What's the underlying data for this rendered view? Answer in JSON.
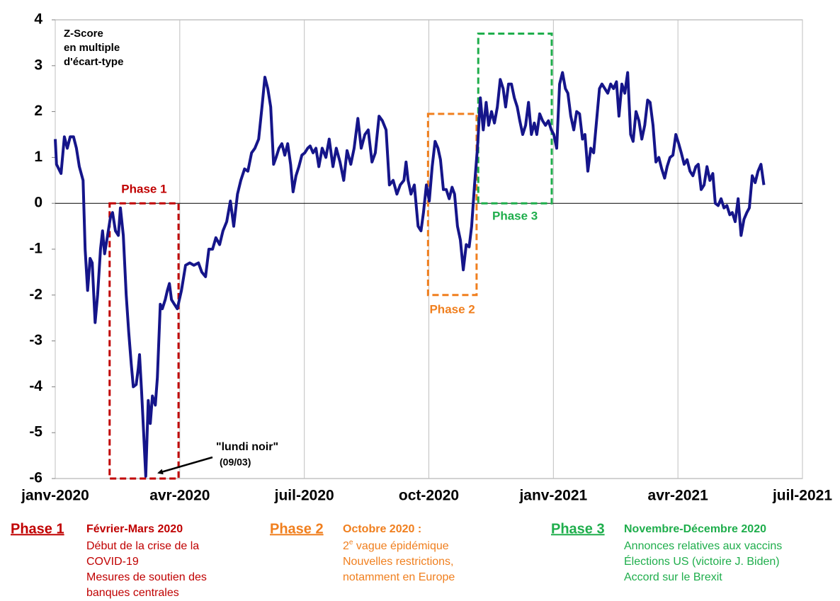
{
  "chart_data": {
    "type": "line",
    "y_axis_label": [
      "Z-Score",
      "en multiple",
      "d'écart-type"
    ],
    "color": "#15158a",
    "x": [
      0,
      0.03,
      0.14,
      0.22,
      0.29,
      0.36,
      0.44,
      0.51,
      0.58,
      0.67,
      0.72,
      0.78,
      0.84,
      0.89,
      0.96,
      1.02,
      1.09,
      1.14,
      1.19,
      1.26,
      1.33,
      1.38,
      1.45,
      1.52,
      1.57,
      1.64,
      1.71,
      1.77,
      1.83,
      1.88,
      1.95,
      2.0,
      2.03,
      2.08,
      2.13,
      2.18,
      2.24,
      2.29,
      2.34,
      2.41,
      2.46,
      2.53,
      2.58,
      2.65,
      2.7,
      2.75,
      2.8,
      2.87,
      2.94,
      3.04,
      3.14,
      3.24,
      3.34,
      3.45,
      3.53,
      3.62,
      3.7,
      3.79,
      3.87,
      3.96,
      4.04,
      4.13,
      4.22,
      4.3,
      4.39,
      4.47,
      4.56,
      4.64,
      4.73,
      4.81,
      4.9,
      4.98,
      5.05,
      5.12,
      5.19,
      5.26,
      5.32,
      5.39,
      5.46,
      5.53,
      5.6,
      5.67,
      5.73,
      5.8,
      5.87,
      5.94,
      6.01,
      6.08,
      6.14,
      6.21,
      6.28,
      6.35,
      6.43,
      6.52,
      6.6,
      6.69,
      6.77,
      6.86,
      6.95,
      7.03,
      7.12,
      7.2,
      7.29,
      7.37,
      7.46,
      7.54,
      7.63,
      7.71,
      7.8,
      7.88,
      7.97,
      8.05,
      8.14,
      8.23,
      8.31,
      8.4,
      8.45,
      8.5,
      8.57,
      8.65,
      8.74,
      8.81,
      8.87,
      8.94,
      9.01,
      9.08,
      9.15,
      9.22,
      9.28,
      9.35,
      9.42,
      9.49,
      9.56,
      9.62,
      9.69,
      9.76,
      9.83,
      9.9,
      9.97,
      10.03,
      10.1,
      10.17,
      10.24,
      10.31,
      10.38,
      10.44,
      10.51,
      10.58,
      10.65,
      10.72,
      10.79,
      10.85,
      10.92,
      10.99,
      11.06,
      11.13,
      11.19,
      11.26,
      11.33,
      11.4,
      11.47,
      11.54,
      11.6,
      11.67,
      11.74,
      11.81,
      11.88,
      11.95,
      12.01,
      12.08,
      12.15,
      12.22,
      12.29,
      12.35,
      12.42,
      12.49,
      12.56,
      12.63,
      12.7,
      12.76,
      12.83,
      12.9,
      12.97,
      13.04,
      13.11,
      13.17,
      13.24,
      13.31,
      13.38,
      13.45,
      13.52,
      13.58,
      13.65,
      13.72,
      13.79,
      13.86,
      13.92,
      13.99,
      14.06,
      14.13,
      14.2,
      14.27,
      14.33,
      14.4,
      14.47,
      14.54,
      14.61,
      14.68,
      14.74,
      14.81,
      14.88,
      14.95,
      15.02,
      15.08,
      15.15,
      15.22,
      15.29,
      15.36,
      15.43,
      15.49,
      15.56,
      15.63,
      15.7,
      15.77,
      15.84,
      15.9,
      15.97,
      16.04,
      16.11,
      16.18,
      16.25,
      16.31,
      16.38,
      16.45,
      16.52,
      16.59,
      16.66,
      16.72,
      16.79,
      16.86,
      16.93,
      17.0,
      17.07
    ],
    "values": [
      1.4,
      0.85,
      0.65,
      1.45,
      1.2,
      1.45,
      1.45,
      1.2,
      0.8,
      0.5,
      -1.0,
      -1.9,
      -1.2,
      -1.3,
      -2.6,
      -2.0,
      -1.0,
      -0.6,
      -1.1,
      -0.7,
      -0.3,
      -0.2,
      -0.6,
      -0.7,
      -0.1,
      -0.7,
      -2.0,
      -2.8,
      -3.5,
      -4.0,
      -3.95,
      -3.6,
      -3.3,
      -4.1,
      -5.0,
      -5.95,
      -4.3,
      -4.8,
      -4.2,
      -4.4,
      -3.8,
      -2.2,
      -2.3,
      -2.1,
      -1.9,
      -1.75,
      -2.1,
      -2.2,
      -2.3,
      -1.9,
      -1.35,
      -1.3,
      -1.35,
      -1.3,
      -1.5,
      -1.6,
      -1.0,
      -1.0,
      -0.75,
      -0.9,
      -0.6,
      -0.4,
      0.05,
      -0.5,
      0.2,
      0.5,
      0.75,
      0.7,
      1.1,
      1.2,
      1.4,
      2.1,
      2.75,
      2.5,
      2.1,
      0.85,
      1.0,
      1.2,
      1.3,
      1.05,
      1.3,
      0.85,
      0.25,
      0.6,
      0.8,
      1.05,
      1.1,
      1.2,
      1.25,
      1.1,
      1.2,
      0.8,
      1.2,
      1.0,
      1.4,
      0.8,
      1.2,
      0.9,
      0.5,
      1.15,
      0.85,
      1.2,
      1.85,
      1.2,
      1.5,
      1.6,
      0.9,
      1.1,
      1.9,
      1.8,
      1.6,
      0.4,
      0.5,
      0.2,
      0.4,
      0.5,
      0.9,
      0.5,
      0.2,
      0.4,
      -0.5,
      -0.6,
      -0.2,
      0.4,
      0.05,
      0.8,
      1.35,
      1.2,
      0.95,
      0.3,
      0.3,
      0.1,
      0.35,
      0.2,
      -0.5,
      -0.8,
      -1.45,
      -0.9,
      -0.95,
      -0.5,
      0.4,
      1.2,
      2.3,
      1.6,
      2.2,
      1.7,
      2.0,
      1.75,
      2.1,
      2.7,
      2.5,
      2.1,
      2.6,
      2.6,
      2.3,
      2.1,
      1.8,
      1.5,
      1.7,
      2.2,
      1.5,
      1.75,
      1.5,
      1.95,
      1.8,
      1.7,
      1.8,
      1.6,
      1.5,
      1.2,
      2.6,
      2.85,
      2.5,
      2.4,
      1.9,
      1.6,
      2.0,
      1.95,
      1.4,
      1.5,
      0.7,
      1.2,
      1.1,
      1.8,
      2.5,
      2.6,
      2.5,
      2.4,
      2.6,
      2.5,
      2.65,
      1.9,
      2.6,
      2.4,
      2.85,
      1.5,
      1.35,
      2.0,
      1.8,
      1.4,
      1.7,
      2.25,
      2.2,
      1.7,
      0.9,
      1.0,
      0.75,
      0.55,
      0.8,
      1.0,
      1.05,
      1.5,
      1.3,
      1.1,
      0.85,
      0.95,
      0.7,
      0.6,
      0.8,
      0.85,
      0.3,
      0.4,
      0.8,
      0.5,
      0.65,
      0.0,
      -0.05,
      0.1,
      -0.1,
      -0.05,
      -0.25,
      -0.2,
      -0.4,
      0.1,
      -0.7,
      -0.35,
      -0.2,
      -0.1,
      0.6,
      0.45,
      0.7,
      0.85,
      0.4
    ],
    "xlim": [
      0,
      18
    ],
    "xticks": [
      {
        "value": 0,
        "label": "janv-2020"
      },
      {
        "value": 3,
        "label": "avr-2020"
      },
      {
        "value": 6,
        "label": "juil-2020"
      },
      {
        "value": 9,
        "label": "oct-2020"
      },
      {
        "value": 12,
        "label": "janv-2021"
      },
      {
        "value": 15,
        "label": "avr-2021"
      },
      {
        "value": 18,
        "label": "juil-2021"
      }
    ],
    "ylim": [
      -6,
      4
    ],
    "yticks": [
      -6,
      -5,
      -4,
      -3,
      -2,
      -1,
      0,
      1,
      2,
      3,
      4
    ],
    "grid": "x",
    "phases": [
      {
        "label": "Phase 1",
        "color": "#c00000",
        "xlim": [
          1.31,
          2.97
        ],
        "ylim": [
          -6,
          0
        ]
      },
      {
        "label": "Phase 2",
        "color": "#f07f1e",
        "xlim": [
          8.98,
          10.15
        ],
        "ylim": [
          -2,
          1.95
        ]
      },
      {
        "label": "Phase 3",
        "color": "#1fae4c",
        "xlim": [
          10.19,
          11.96
        ],
        "ylim": [
          0,
          3.7
        ]
      }
    ],
    "callout": [
      "\"lundi noir\"",
      "(09/03)"
    ]
  },
  "notes": [
    {
      "title": "Phase 1",
      "heading": "Février-Mars 2020",
      "lines": [
        "Début de la  crise de la",
        "COVID-19",
        "Mesures de soutien des",
        "banques centrales"
      ]
    },
    {
      "title": "Phase 2",
      "heading": "Octobre 2020 :",
      "lines": [
        {
          "base": "2",
          "sup": "e",
          "rest": " vague épidémique"
        },
        "Nouvelles restrictions,",
        "notamment en Europe"
      ]
    },
    {
      "title": "Phase 3",
      "heading": "Novembre-Décembre 2020",
      "lines": [
        "Annonces relatives aux vaccins",
        "Élections US (victoire J. Biden)",
        "Accord sur le Brexit"
      ]
    }
  ]
}
